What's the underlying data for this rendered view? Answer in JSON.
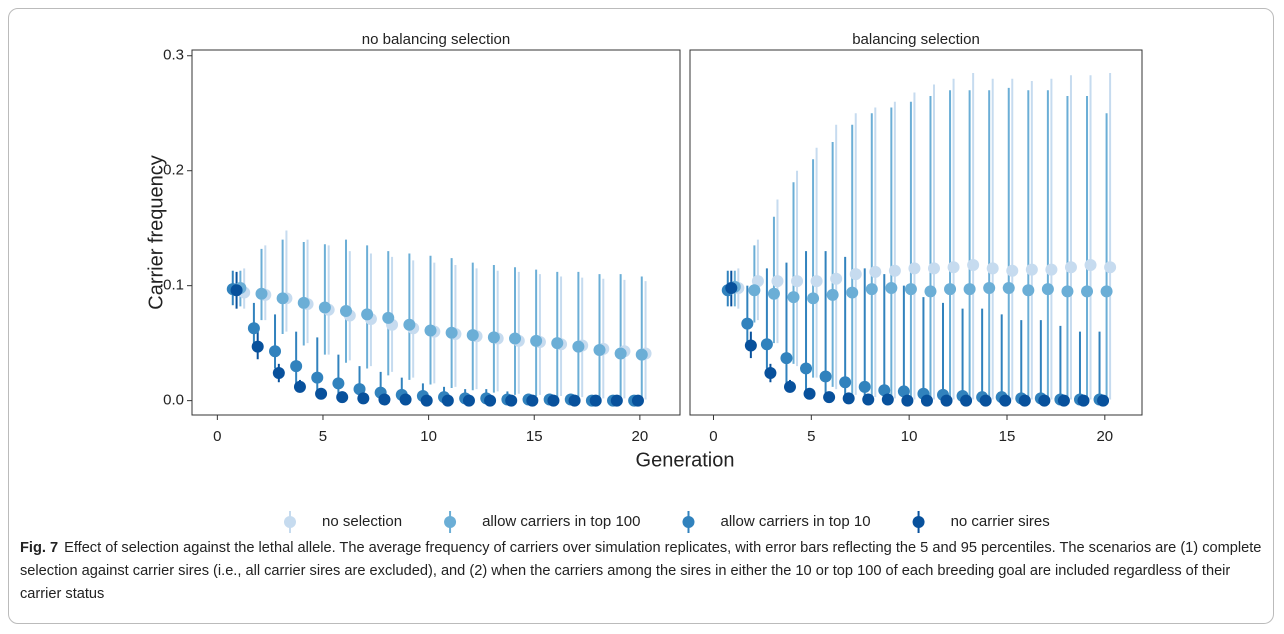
{
  "chart_data": [
    {
      "type": "errorbar",
      "title": "no balancing selection",
      "y_label": "Carrier frequency",
      "x_label": "Generation",
      "x": [
        1,
        2,
        3,
        4,
        5,
        6,
        7,
        8,
        9,
        10,
        11,
        12,
        13,
        14,
        15,
        16,
        17,
        18,
        19,
        20
      ],
      "xlim": [
        -1.2,
        21.9
      ],
      "xticks": [
        0,
        5,
        10,
        15,
        20
      ],
      "ylim": [
        -0.0125,
        0.305
      ],
      "yticks": [
        {
          "value": 0,
          "label": "0.0"
        },
        {
          "value": 0.1,
          "label": "0.1"
        },
        {
          "value": 0.2,
          "label": "0.2"
        },
        {
          "value": 0.3,
          "label": "0.3"
        }
      ],
      "series": [
        {
          "name": "no selection",
          "color": "#c6dbef",
          "values": [
            0.094,
            0.092,
            0.089,
            0.084,
            0.079,
            0.074,
            0.071,
            0.066,
            0.063,
            0.06,
            0.058,
            0.056,
            0.054,
            0.052,
            0.051,
            0.049,
            0.048,
            0.045,
            0.043,
            0.041
          ],
          "lower": [
            0.08,
            0.07,
            0.06,
            0.05,
            0.04,
            0.035,
            0.03,
            0.025,
            0.02,
            0.015,
            0.012,
            0.01,
            0.008,
            0.006,
            0.005,
            0.004,
            0.003,
            0.002,
            0.002,
            0.001
          ],
          "upper": [
            0.115,
            0.135,
            0.148,
            0.14,
            0.135,
            0.13,
            0.128,
            0.125,
            0.122,
            0.12,
            0.118,
            0.115,
            0.113,
            0.112,
            0.11,
            0.108,
            0.107,
            0.106,
            0.105,
            0.104
          ]
        },
        {
          "name": "allow carriers in top 100",
          "color": "#6baed6",
          "values": [
            0.098,
            0.093,
            0.089,
            0.085,
            0.081,
            0.078,
            0.075,
            0.072,
            0.066,
            0.061,
            0.059,
            0.057,
            0.055,
            0.054,
            0.052,
            0.05,
            0.047,
            0.044,
            0.041,
            0.04
          ],
          "lower": [
            0.082,
            0.07,
            0.058,
            0.048,
            0.04,
            0.033,
            0.028,
            0.022,
            0.018,
            0.014,
            0.011,
            0.009,
            0.007,
            0.005,
            0.004,
            0.003,
            0.002,
            0.002,
            0.001,
            0.001
          ],
          "upper": [
            0.113,
            0.132,
            0.14,
            0.138,
            0.136,
            0.14,
            0.135,
            0.13,
            0.128,
            0.126,
            0.124,
            0.12,
            0.118,
            0.116,
            0.114,
            0.112,
            0.112,
            0.11,
            0.11,
            0.108
          ]
        },
        {
          "name": "allow carriers in top 10",
          "color": "#3182bd",
          "values": [
            0.097,
            0.063,
            0.043,
            0.03,
            0.02,
            0.015,
            0.01,
            0.007,
            0.005,
            0.004,
            0.003,
            0.002,
            0.002,
            0.001,
            0.001,
            0.001,
            0.001,
            0,
            0,
            0
          ],
          "lower": [
            0.083,
            0.045,
            0.028,
            0.015,
            0.008,
            0.005,
            0.002,
            0,
            0,
            0,
            0,
            0,
            0,
            0,
            0,
            0,
            0,
            0,
            0,
            0
          ],
          "upper": [
            0.113,
            0.085,
            0.075,
            0.06,
            0.055,
            0.04,
            0.03,
            0.025,
            0.02,
            0.015,
            0.012,
            0.01,
            0.01,
            0.008,
            0.006,
            0.006,
            0.005,
            0.004,
            0.004,
            0.003
          ]
        },
        {
          "name": "no carrier sires",
          "color": "#08519c",
          "values": [
            0.096,
            0.047,
            0.024,
            0.012,
            0.006,
            0.003,
            0.002,
            0.001,
            0.001,
            0,
            0,
            0,
            0,
            0,
            0,
            0,
            0,
            0,
            0,
            0
          ],
          "lower": [
            0.08,
            0.036,
            0.016,
            0.007,
            0.003,
            0.001,
            0,
            0,
            0,
            0,
            0,
            0,
            0,
            0,
            0,
            0,
            0,
            0,
            0,
            0
          ],
          "upper": [
            0.112,
            0.06,
            0.032,
            0.018,
            0.01,
            0.006,
            0.004,
            0.003,
            0.002,
            0.001,
            0.001,
            0.001,
            0.001,
            0.001,
            0.001,
            0.001,
            0.001,
            0.001,
            0.001,
            0.001
          ]
        }
      ]
    },
    {
      "type": "errorbar",
      "title": "balancing selection",
      "x": [
        1,
        2,
        3,
        4,
        5,
        6,
        7,
        8,
        9,
        10,
        11,
        12,
        13,
        14,
        15,
        16,
        17,
        18,
        19,
        20
      ],
      "xlim": [
        -1.2,
        21.9
      ],
      "xticks": [
        0,
        5,
        10,
        15,
        20
      ],
      "ylim": [
        -0.0125,
        0.305
      ],
      "series": [
        {
          "name": "no selection",
          "color": "#c6dbef",
          "values": [
            0.098,
            0.104,
            0.104,
            0.104,
            0.104,
            0.106,
            0.11,
            0.112,
            0.113,
            0.115,
            0.115,
            0.116,
            0.118,
            0.115,
            0.113,
            0.114,
            0.114,
            0.116,
            0.118,
            0.116
          ],
          "lower": [
            0.08,
            0.07,
            0.05,
            0.03,
            0.02,
            0.01,
            0.005,
            0.003,
            0.002,
            0.001,
            0.001,
            0.001,
            0.001,
            0.001,
            0.001,
            0.001,
            0.001,
            0.001,
            0.001,
            0.001
          ],
          "upper": [
            0.115,
            0.14,
            0.175,
            0.2,
            0.22,
            0.24,
            0.25,
            0.255,
            0.26,
            0.268,
            0.275,
            0.28,
            0.285,
            0.28,
            0.28,
            0.278,
            0.28,
            0.283,
            0.283,
            0.285
          ]
        },
        {
          "name": "allow carriers in top 100",
          "color": "#6baed6",
          "values": [
            0.099,
            0.096,
            0.093,
            0.09,
            0.089,
            0.092,
            0.094,
            0.097,
            0.098,
            0.097,
            0.095,
            0.097,
            0.097,
            0.098,
            0.098,
            0.096,
            0.097,
            0.095,
            0.095,
            0.095
          ],
          "lower": [
            0.082,
            0.068,
            0.05,
            0.032,
            0.02,
            0.012,
            0.006,
            0.004,
            0.003,
            0.002,
            0.001,
            0.001,
            0.001,
            0.001,
            0.001,
            0.001,
            0.001,
            0.001,
            0.001,
            0.001
          ],
          "upper": [
            0.113,
            0.135,
            0.16,
            0.19,
            0.21,
            0.225,
            0.24,
            0.25,
            0.255,
            0.26,
            0.265,
            0.27,
            0.27,
            0.27,
            0.272,
            0.27,
            0.27,
            0.265,
            0.265,
            0.25
          ]
        },
        {
          "name": "allow carriers in top 10",
          "color": "#3182bd",
          "values": [
            0.096,
            0.067,
            0.049,
            0.037,
            0.028,
            0.021,
            0.016,
            0.012,
            0.009,
            0.008,
            0.006,
            0.005,
            0.004,
            0.003,
            0.003,
            0.002,
            0.002,
            0.001,
            0.001,
            0.001
          ],
          "lower": [
            0.082,
            0.045,
            0.028,
            0.015,
            0.008,
            0.004,
            0.002,
            0.001,
            0,
            0,
            0,
            0,
            0,
            0,
            0,
            0,
            0,
            0,
            0,
            0
          ],
          "upper": [
            0.113,
            0.1,
            0.115,
            0.12,
            0.13,
            0.13,
            0.125,
            0.115,
            0.11,
            0.1,
            0.09,
            0.085,
            0.08,
            0.08,
            0.075,
            0.07,
            0.07,
            0.065,
            0.06,
            0.06
          ]
        },
        {
          "name": "no carrier sires",
          "color": "#08519c",
          "values": [
            0.098,
            0.048,
            0.024,
            0.012,
            0.006,
            0.003,
            0.002,
            0.001,
            0.001,
            0,
            0,
            0,
            0,
            0,
            0,
            0,
            0,
            0,
            0,
            0
          ],
          "lower": [
            0.082,
            0.037,
            0.016,
            0.007,
            0.003,
            0.001,
            0,
            0,
            0,
            0,
            0,
            0,
            0,
            0,
            0,
            0,
            0,
            0,
            0,
            0
          ],
          "upper": [
            0.113,
            0.06,
            0.032,
            0.018,
            0.01,
            0.006,
            0.004,
            0.003,
            0.002,
            0.001,
            0.001,
            0.001,
            0.001,
            0.001,
            0.001,
            0.001,
            0.001,
            0.001,
            0.001,
            0.001
          ]
        }
      ]
    }
  ],
  "caption": {
    "label": "Fig. 7",
    "text": "Effect of selection against the lethal allele. The average frequency of carriers over simulation replicates, with error bars reflecting the 5 and 95 percentiles. The scenarios are (1) complete selection against carrier sires (i.e., all carrier sires are excluded), and (2) when the carriers among the sires in either the 10 or top 100 of each breeding goal are included regardless of their carrier status"
  }
}
